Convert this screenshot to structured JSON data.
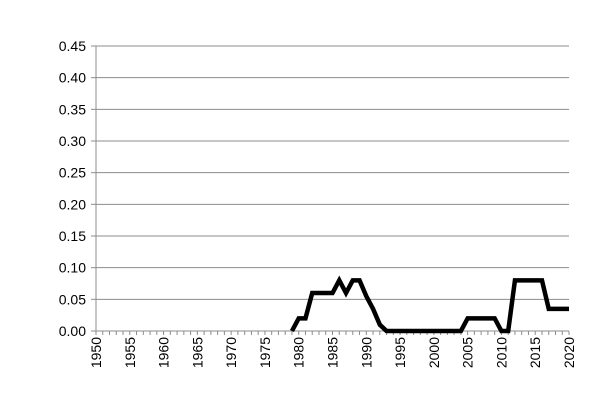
{
  "chart_data": {
    "type": "line",
    "title": "",
    "xlabel": "",
    "ylabel": "",
    "xlim": [
      1950,
      2020
    ],
    "ylim": [
      0,
      0.45
    ],
    "y_ticks": [
      "0.00",
      "0.05",
      "0.10",
      "0.15",
      "0.20",
      "0.25",
      "0.30",
      "0.35",
      "0.40",
      "0.45"
    ],
    "x_ticks": [
      "1950",
      "1955",
      "1960",
      "1965",
      "1970",
      "1975",
      "1980",
      "1985",
      "1990",
      "1995",
      "2000",
      "2005",
      "2010",
      "2015",
      "2020"
    ],
    "grid": true,
    "legend": "none",
    "series_color": "#000000",
    "series": [
      {
        "x": [
          1979,
          1980,
          1981,
          1982,
          1983,
          1984,
          1985,
          1986,
          1987,
          1988,
          1989,
          1990,
          1991,
          1992,
          1993,
          1994,
          2004,
          2005,
          2006,
          2007,
          2008,
          2009,
          2010,
          2011,
          2012,
          2013,
          2014,
          2015,
          2016,
          2017,
          2018,
          2019,
          2020
        ],
        "y": [
          0.0,
          0.02,
          0.02,
          0.06,
          0.06,
          0.06,
          0.06,
          0.08,
          0.06,
          0.08,
          0.08,
          0.055,
          0.035,
          0.01,
          0.0,
          0.0,
          0.0,
          0.02,
          0.02,
          0.02,
          0.02,
          0.02,
          0.0,
          0.0,
          0.08,
          0.08,
          0.08,
          0.08,
          0.08,
          0.035,
          0.035,
          0.035,
          0.035
        ]
      }
    ]
  }
}
